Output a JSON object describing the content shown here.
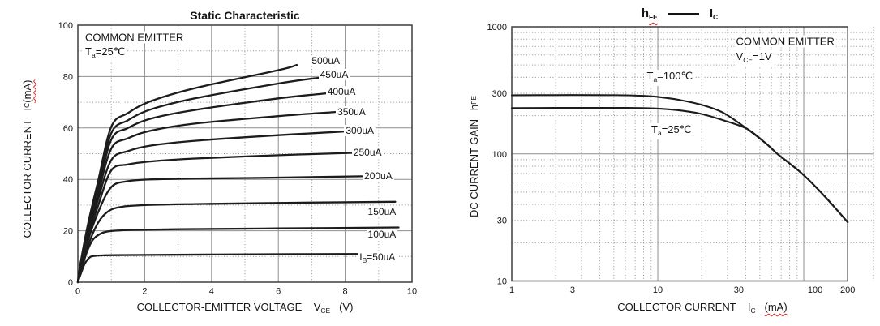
{
  "colors": {
    "curve": "#1c1c1c",
    "grid": "#8f8f8f",
    "border": "#3f3f3f",
    "text": "#151515",
    "squiggle": "#e02020",
    "background": "#ffffff"
  },
  "chart_data": [
    {
      "id": "static-characteristic",
      "type": "line",
      "title": "Static Characteristic",
      "xscale": "linear",
      "yscale": "linear",
      "xlim": [
        0,
        10
      ],
      "ylim": [
        0,
        100
      ],
      "xlabel_segments": [
        {
          "t": "COLLECTOR-EMITTER VOLTAGE    "
        },
        {
          "t": "V"
        },
        {
          "t": "CE",
          "sub": true
        },
        {
          "t": "   (V)"
        }
      ],
      "ylabel_segments": [
        {
          "t": "COLLECTOR CURRENT   "
        },
        {
          "t": "I"
        },
        {
          "t": "C",
          "sub": true
        },
        {
          "t": "(mA)",
          "wavy": true
        }
      ],
      "xticks": [
        {
          "v": 0
        },
        {
          "v": 2
        },
        {
          "v": 4
        },
        {
          "v": 6
        },
        {
          "v": 8
        },
        {
          "v": 10
        }
      ],
      "yticks": [
        {
          "v": 0
        },
        {
          "v": 20
        },
        {
          "v": 40
        },
        {
          "v": 60
        },
        {
          "v": 80
        },
        {
          "v": 100
        }
      ],
      "grid": {
        "x_solid": [
          2,
          4,
          6,
          8
        ],
        "x_dotted": [
          1,
          3,
          5,
          7,
          9
        ],
        "y_solid": [
          20,
          40,
          60,
          80
        ],
        "y_dotted": [
          10,
          30,
          50,
          70,
          90
        ]
      },
      "annotations": [
        {
          "name": "common-emitter-note",
          "x": 0.17,
          "y": 95.3,
          "segments": [
            {
              "t": "COMMON EMITTER"
            }
          ]
        },
        {
          "name": "ta-25-note",
          "x": 0.17,
          "y": 89.0,
          "segments": [
            {
              "t": "T"
            },
            {
              "t": "a",
              "sub": true
            },
            {
              "t": "=25℃"
            }
          ]
        }
      ],
      "series": [
        {
          "name": "ib-500uA",
          "label": {
            "segments": [
              {
                "t": "500uA"
              }
            ],
            "x": 6.95,
            "y": 86.2
          },
          "points": [
            [
              0,
              0
            ],
            [
              0.08,
              7.5
            ],
            [
              0.3,
              22.5
            ],
            [
              0.6,
              39
            ],
            [
              1,
              60.5
            ],
            [
              1.5,
              65.8
            ],
            [
              2.2,
              70.5
            ],
            [
              3.5,
              75.5
            ],
            [
              6,
              82.5
            ],
            [
              6.55,
              84.5
            ]
          ]
        },
        {
          "name": "ib-450uA",
          "label": {
            "segments": [
              {
                "t": "450uA"
              }
            ],
            "x": 7.2,
            "y": 80.8
          },
          "points": [
            [
              0,
              0
            ],
            [
              0.08,
              7
            ],
            [
              0.3,
              21.5
            ],
            [
              0.6,
              37
            ],
            [
              1,
              58
            ],
            [
              1.5,
              63
            ],
            [
              2.2,
              67.3
            ],
            [
              3.5,
              71.5
            ],
            [
              6,
              77.3
            ],
            [
              7.2,
              79.5
            ]
          ]
        },
        {
          "name": "ib-400uA",
          "label": {
            "segments": [
              {
                "t": "400uA"
              }
            ],
            "x": 7.42,
            "y": 74
          },
          "points": [
            [
              0,
              0
            ],
            [
              0.08,
              6.5
            ],
            [
              0.3,
              20.5
            ],
            [
              0.6,
              35.5
            ],
            [
              1,
              55.5
            ],
            [
              1.5,
              60
            ],
            [
              2.2,
              63.7
            ],
            [
              3.5,
              67
            ],
            [
              6,
              71.5
            ],
            [
              7.45,
              73.5
            ]
          ]
        },
        {
          "name": "ib-350uA",
          "label": {
            "segments": [
              {
                "t": "350uA"
              }
            ],
            "x": 7.72,
            "y": 66.4
          },
          "points": [
            [
              0,
              0
            ],
            [
              0.08,
              6
            ],
            [
              0.3,
              19.5
            ],
            [
              0.6,
              34
            ],
            [
              1,
              52
            ],
            [
              1.5,
              56
            ],
            [
              2.2,
              59
            ],
            [
              3.5,
              61.7
            ],
            [
              6,
              64.6
            ],
            [
              7.7,
              66.2
            ]
          ]
        },
        {
          "name": "ib-300uA",
          "label": {
            "segments": [
              {
                "t": "300uA"
              }
            ],
            "x": 7.97,
            "y": 59
          },
          "points": [
            [
              0,
              0
            ],
            [
              0.08,
              5.5
            ],
            [
              0.3,
              18.5
            ],
            [
              0.6,
              32
            ],
            [
              1,
              47.5
            ],
            [
              1.5,
              51
            ],
            [
              2.2,
              53.2
            ],
            [
              3.5,
              55
            ],
            [
              6,
              57.2
            ],
            [
              7.95,
              58.6
            ]
          ]
        },
        {
          "name": "ib-250uA",
          "label": {
            "segments": [
              {
                "t": "250uA"
              }
            ],
            "x": 8.2,
            "y": 50.6
          },
          "points": [
            [
              0,
              0
            ],
            [
              0.08,
              5
            ],
            [
              0.3,
              17.5
            ],
            [
              0.6,
              29.5
            ],
            [
              1,
              43.5
            ],
            [
              1.5,
              45.8
            ],
            [
              2.2,
              47
            ],
            [
              3.5,
              48.1
            ],
            [
              6,
              49.4
            ],
            [
              8.2,
              50.3
            ]
          ]
        },
        {
          "name": "ib-200uA",
          "label": {
            "segments": [
              {
                "t": "200uA"
              }
            ],
            "x": 8.52,
            "y": 41.3
          },
          "points": [
            [
              0,
              0
            ],
            [
              0.08,
              4.5
            ],
            [
              0.3,
              16
            ],
            [
              0.6,
              27
            ],
            [
              1,
              37
            ],
            [
              1.5,
              39.3
            ],
            [
              2.2,
              40
            ],
            [
              3.5,
              40.3
            ],
            [
              6,
              40.7
            ],
            [
              8.5,
              41.2
            ]
          ]
        },
        {
          "name": "ib-150uA",
          "label": {
            "segments": [
              {
                "t": "150uA"
              }
            ],
            "x": 8.63,
            "y": 27.3
          },
          "points": [
            [
              0,
              0
            ],
            [
              0.08,
              4
            ],
            [
              0.3,
              14
            ],
            [
              0.6,
              23
            ],
            [
              0.9,
              27.5
            ],
            [
              1.3,
              29.3
            ],
            [
              2,
              30
            ],
            [
              3.5,
              30.4
            ],
            [
              6.5,
              30.9
            ],
            [
              9.5,
              31.3
            ]
          ]
        },
        {
          "name": "ib-100uA",
          "label": {
            "segments": [
              {
                "t": "100uA"
              }
            ],
            "x": 8.63,
            "y": 18.7
          },
          "points": [
            [
              0,
              0
            ],
            [
              0.08,
              3.5
            ],
            [
              0.25,
              11
            ],
            [
              0.45,
              16.5
            ],
            [
              0.7,
              19
            ],
            [
              1,
              19.9
            ],
            [
              1.6,
              20.3
            ],
            [
              3,
              20.6
            ],
            [
              6,
              20.9
            ],
            [
              9.6,
              21.3
            ]
          ]
        },
        {
          "name": "ib-50uA",
          "label": {
            "segments": [
              {
                "t": "I"
              },
              {
                "t": "B",
                "sub": true
              },
              {
                "t": "=50uA"
              }
            ],
            "x": 8.38,
            "y": 9.2
          },
          "points": [
            [
              0,
              0
            ],
            [
              0.08,
              3
            ],
            [
              0.2,
              7
            ],
            [
              0.35,
              9.6
            ],
            [
              0.55,
              10.3
            ],
            [
              1,
              10.5
            ],
            [
              2,
              10.6
            ],
            [
              4,
              10.75
            ],
            [
              6.5,
              10.9
            ],
            [
              9.5,
              11
            ]
          ]
        }
      ]
    },
    {
      "id": "dc-current-gain",
      "type": "line",
      "title_left_segments": [
        {
          "t": "h",
          "bold": true
        },
        {
          "t": "FE",
          "sub": true,
          "wavy": true
        }
      ],
      "title_right_segments": [
        {
          "t": "I",
          "bold": true
        },
        {
          "t": "C",
          "sub": true
        }
      ],
      "xscale": "log",
      "yscale": "log",
      "xlim": [
        1,
        200
      ],
      "ylim": [
        10,
        1000
      ],
      "xlabel_segments": [
        {
          "t": "COLLECTOR CURRENT    "
        },
        {
          "t": "I"
        },
        {
          "t": "C",
          "sub": true
        },
        {
          "t": "   "
        },
        {
          "t": "(mA)",
          "wavy": true
        }
      ],
      "ylabel_segments": [
        {
          "t": "DC CURRENT GAIN   "
        },
        {
          "t": "h"
        },
        {
          "t": "FE",
          "sub": true
        }
      ],
      "xticks": [
        {
          "v": 1
        },
        {
          "v": 3,
          "dx": -11
        },
        {
          "v": 10
        },
        {
          "v": 30,
          "dx": 14
        },
        {
          "v": 100,
          "dx": 14
        },
        {
          "v": 200
        }
      ],
      "yticks": [
        {
          "v": 10
        },
        {
          "v": 30
        },
        {
          "v": 100
        },
        {
          "v": 300
        },
        {
          "v": 1000
        }
      ],
      "grid": {
        "x_solid": [
          10,
          100
        ],
        "x_dotted": [
          2,
          3,
          4,
          5,
          6,
          7,
          8,
          9,
          20,
          30,
          40,
          50,
          60,
          70,
          80,
          90,
          300
        ],
        "y_solid": [
          100
        ],
        "y_dotted": [
          20,
          30,
          40,
          50,
          60,
          70,
          80,
          90,
          200,
          300,
          400,
          500,
          600,
          700,
          800,
          900
        ],
        "h_extend_to": 300
      },
      "annotations": [
        {
          "name": "common-emitter-note",
          "x": 33.5,
          "y": 768,
          "segments": [
            {
              "t": "COMMON EMITTER"
            }
          ]
        },
        {
          "name": "vce-note",
          "x": 33.5,
          "y": 565,
          "segments": [
            {
              "t": "V"
            },
            {
              "t": "CE",
              "sub": true
            },
            {
              "t": "=1V"
            }
          ]
        },
        {
          "name": "ta-100-note",
          "x": 8.2,
          "y": 398,
          "segments": [
            {
              "t": "T"
            },
            {
              "t": "a",
              "sub": true
            },
            {
              "t": "=100℃"
            }
          ]
        },
        {
          "name": "ta-25-note",
          "x": 8.8,
          "y": 150,
          "segments": [
            {
              "t": "T"
            },
            {
              "t": "a",
              "sub": true
            },
            {
              "t": "=25℃"
            }
          ]
        }
      ],
      "series": [
        {
          "name": "hfe-ta-100c",
          "points": [
            [
              1,
              289
            ],
            [
              2,
              290
            ],
            [
              4,
              290
            ],
            [
              6,
              289
            ],
            [
              8,
              286
            ],
            [
              10,
              281
            ],
            [
              14,
              266
            ],
            [
              20,
              243
            ],
            [
              28,
              211
            ],
            [
              41,
              157
            ],
            [
              55,
              121
            ],
            [
              66,
              100
            ],
            [
              80,
              84
            ],
            [
              100,
              68
            ],
            [
              140,
              46
            ],
            [
              200,
              29
            ]
          ]
        },
        {
          "name": "hfe-ta-25c",
          "points": [
            [
              1,
              229
            ],
            [
              2,
              230
            ],
            [
              4,
              230
            ],
            [
              6,
              230
            ],
            [
              8,
              229
            ],
            [
              10,
              227
            ],
            [
              14,
              220
            ],
            [
              20,
              206
            ],
            [
              28,
              184
            ],
            [
              41,
              157
            ],
            [
              55,
              121
            ],
            [
              66,
              100
            ],
            [
              80,
              84
            ],
            [
              100,
              68
            ],
            [
              140,
              46
            ],
            [
              200,
              29
            ]
          ]
        }
      ]
    }
  ]
}
